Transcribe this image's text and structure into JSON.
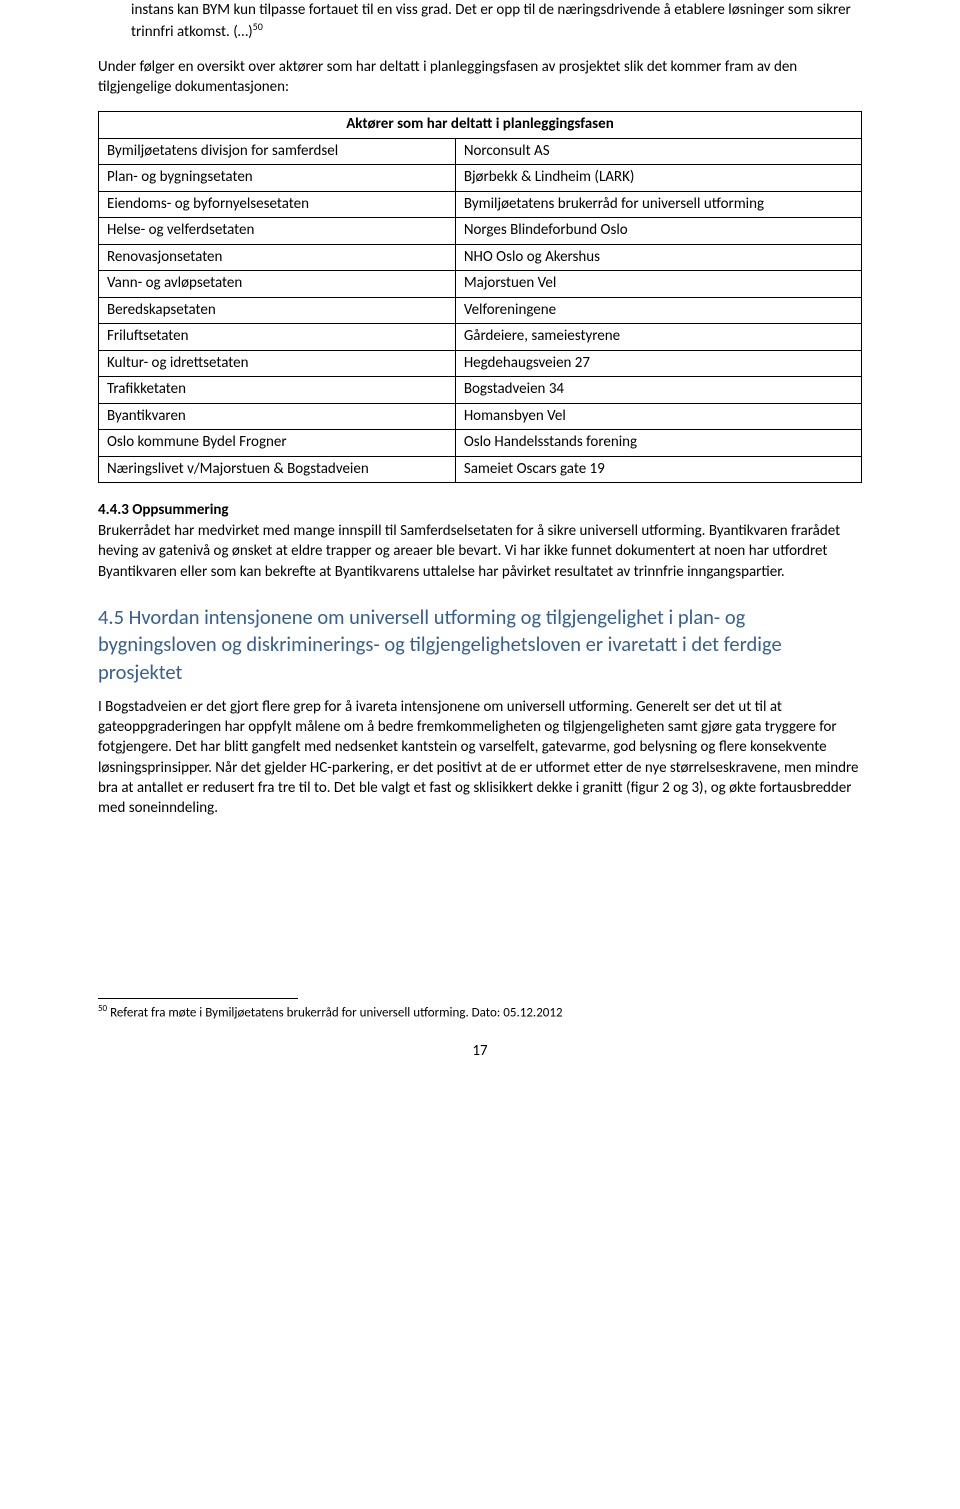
{
  "para1": "instans kan BYM kun tilpasse fortauet til en viss grad. Det er opp til de næringsdrivende å etablere løsninger som sikrer trinnfri atkomst. (…)",
  "para1_sup": "50",
  "para2": "Under følger en oversikt over aktører som har deltatt i planleggingsfasen av prosjektet slik det kommer fram av den tilgjengelige dokumentasjonen:",
  "table": {
    "header": "Aktører som har deltatt i planleggingsfasen",
    "rows": [
      [
        "Bymiljøetatens divisjon for samferdsel",
        "Norconsult AS"
      ],
      [
        "Plan- og bygningsetaten",
        "Bjørbekk & Lindheim (LARK)"
      ],
      [
        "Eiendoms- og byfornyelsesetaten",
        "Bymiljøetatens brukerråd for universell utforming"
      ],
      [
        "Helse- og velferdsetaten",
        "Norges Blindeforbund Oslo"
      ],
      [
        "Renovasjonsetaten",
        "NHO Oslo og Akershus"
      ],
      [
        "Vann- og avløpsetaten",
        "Majorstuen Vel"
      ],
      [
        "Beredskapsetaten",
        "Velforeningene"
      ],
      [
        "Friluftsetaten",
        "Gårdeiere, sameiestyrene"
      ],
      [
        "Kultur- og idrettsetaten",
        "Hegdehaugsveien 27"
      ],
      [
        "Trafikketaten",
        "Bogstadveien 34"
      ],
      [
        "Byantikvaren",
        "Homansbyen Vel"
      ],
      [
        "Oslo kommune Bydel Frogner",
        "Oslo Handelsstands forening"
      ],
      [
        "Næringslivet v/Majorstuen & Bogstadveien",
        "Sameiet Oscars gate 19"
      ]
    ]
  },
  "section_443_title": "4.4.3 Oppsummering",
  "section_443_body": "Brukerrådet har medvirket med mange innspill til Samferdselsetaten for å sikre universell utforming. Byantikvaren frarådet heving av gatenivå og ønsket at eldre trapper og areaer ble bevart. Vi har ikke funnet dokumentert at noen har utfordret Byantikvaren eller som kan bekrefte at Byantikvarens uttalelse har påvirket resultatet av trinnfrie inngangspartier.",
  "section_45_title": "4.5 Hvordan intensjonene om universell utforming og tilgjengelighet i plan- og bygningsloven og diskriminerings- og tilgjengelighetsloven er ivaretatt i det ferdige prosjektet",
  "section_45_body": "I Bogstadveien er det gjort flere grep for å ivareta intensjonene om universell utforming. Generelt ser det ut til at gateoppgraderingen har oppfylt målene om å bedre fremkommeligheten og tilgjengeligheten samt gjøre gata tryggere for fotgjengere. Det har blitt gangfelt med nedsenket kantstein og varselfelt, gatevarme, god belysning og flere konsekvente løsningsprinsipper. Når det gjelder HC-parkering, er det positivt at de er utformet etter de nye størrelseskravene, men mindre bra at antallet er redusert fra tre til to. Det ble valgt et fast og sklisikkert dekke i granitt (figur 2 og 3), og økte fortausbredder med soneinndeling.",
  "footnote_num": "50",
  "footnote_text": " Referat fra møte i Bymiljøetatens brukerråd for universell utforming. Dato: 05.12.2012",
  "page_number": "17"
}
